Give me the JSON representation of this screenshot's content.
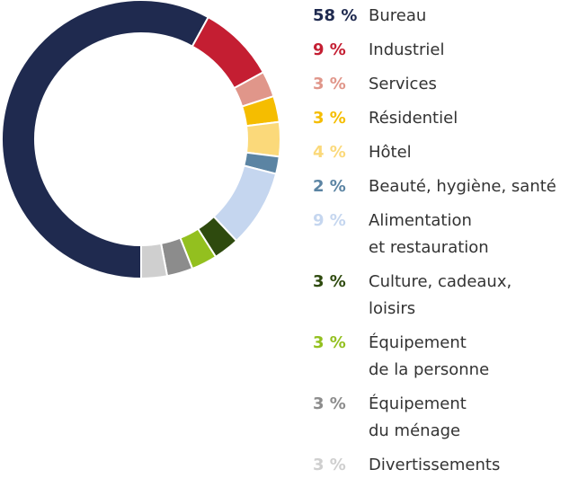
{
  "chart_data": {
    "type": "donut",
    "categories": [
      "Bureau",
      "Industriel",
      "Services",
      "Résidentiel",
      "Hôtel",
      "Beauté, hygiène, santé",
      "Alimentation\net restauration",
      "Culture, cadeaux,\nloisirs",
      "Équipement\nde la personne",
      "Équipement\ndu ménage",
      "Divertissements"
    ],
    "values": [
      58,
      9,
      3,
      3,
      4,
      2,
      9,
      3,
      3,
      3,
      3
    ],
    "value_labels": [
      "58 %",
      "9 %",
      "3 %",
      "3 %",
      "4 %",
      "2 %",
      "9 %",
      "3 %",
      "3 %",
      "3 %",
      "3 %"
    ],
    "colors": [
      "#1f2a4f",
      "#c41e32",
      "#e0968a",
      "#f5bd00",
      "#fbd97a",
      "#5b84a3",
      "#c5d6ef",
      "#2e4a0e",
      "#93c01f",
      "#8c8c8c",
      "#cfcfcf"
    ]
  }
}
